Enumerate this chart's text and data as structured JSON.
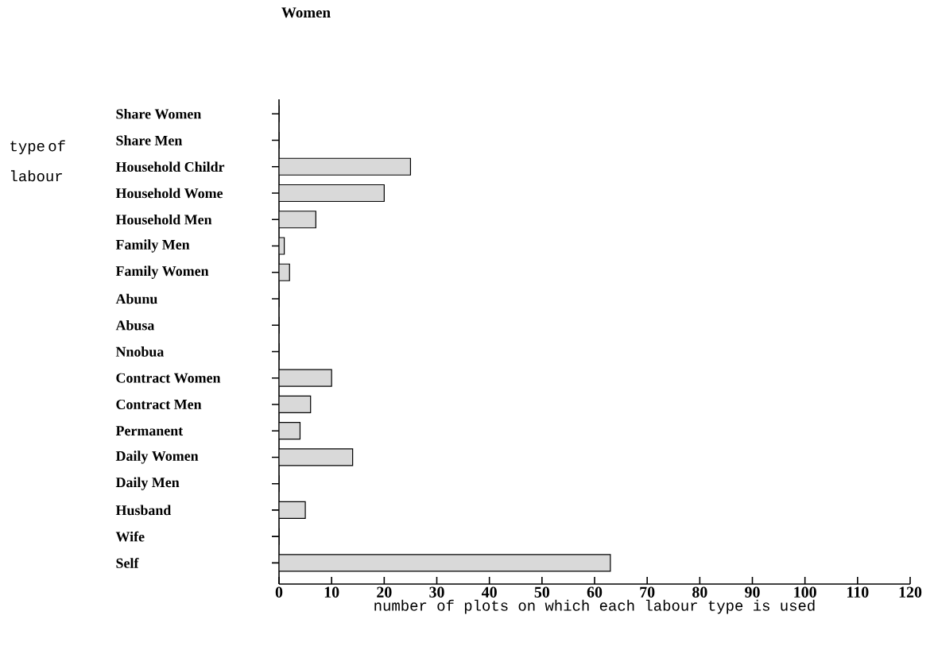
{
  "chart_data": {
    "type": "bar",
    "orientation": "horizontal",
    "title": "Women",
    "xlabel": "number of plots on which each labour type is used",
    "ylabel": "type of labour",
    "categories": [
      "Share Women",
      "Share Men",
      "Household Childr",
      "Household Wome",
      "Household Men",
      "Family Men",
      "Family Women",
      "Abunu",
      "Abusa",
      "Nnobua",
      "Contract Women",
      "Contract Men",
      "Permanent",
      "Daily Women",
      "Daily Men",
      "Husband",
      "Wife",
      "Self"
    ],
    "values": [
      0,
      0,
      25,
      20,
      7,
      1,
      2,
      0,
      0,
      0,
      10,
      6,
      4,
      14,
      0,
      5,
      0,
      63
    ],
    "color": "#d9d9d9",
    "xlim": [
      0,
      120
    ],
    "xticks": [
      0,
      10,
      20,
      30,
      40,
      50,
      60,
      70,
      80,
      90,
      100,
      110,
      120
    ],
    "grid": false
  }
}
